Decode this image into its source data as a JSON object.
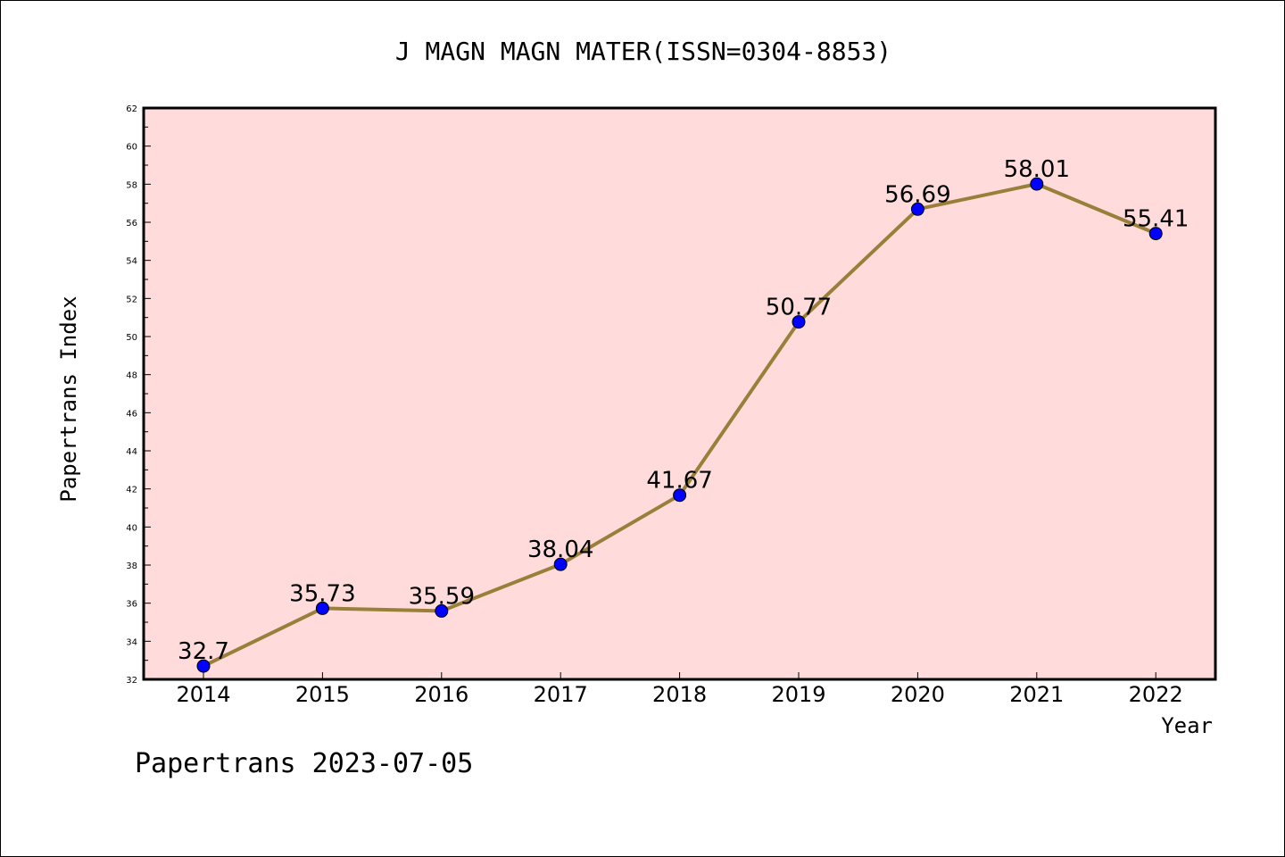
{
  "chart_data": {
    "type": "line",
    "title": "J MAGN MAGN MATER(ISSN=0304-8853)",
    "xlabel": "Year",
    "ylabel": "Papertrans Index",
    "categories": [
      "2014",
      "2015",
      "2016",
      "2017",
      "2018",
      "2019",
      "2020",
      "2021",
      "2022"
    ],
    "values": [
      32.7,
      35.73,
      35.59,
      38.04,
      41.67,
      50.77,
      56.69,
      58.01,
      55.41
    ],
    "data_labels": [
      "32.7",
      "35.73",
      "35.59",
      "38.04",
      "41.67",
      "50.77",
      "56.69",
      "58.01",
      "55.41"
    ],
    "ylim": [
      32,
      62
    ],
    "yticks": [
      "32",
      "34",
      "36",
      "38",
      "40",
      "42",
      "44",
      "46",
      "48",
      "50",
      "52",
      "54",
      "56",
      "58",
      "60",
      "62"
    ],
    "grid": false,
    "legend": "none",
    "colors": {
      "plot_background": "#ffdcdb",
      "line": "#9a7f3a",
      "marker": "#0000ff",
      "axis": "#000000"
    }
  },
  "footer": "Papertrans 2023-07-05"
}
